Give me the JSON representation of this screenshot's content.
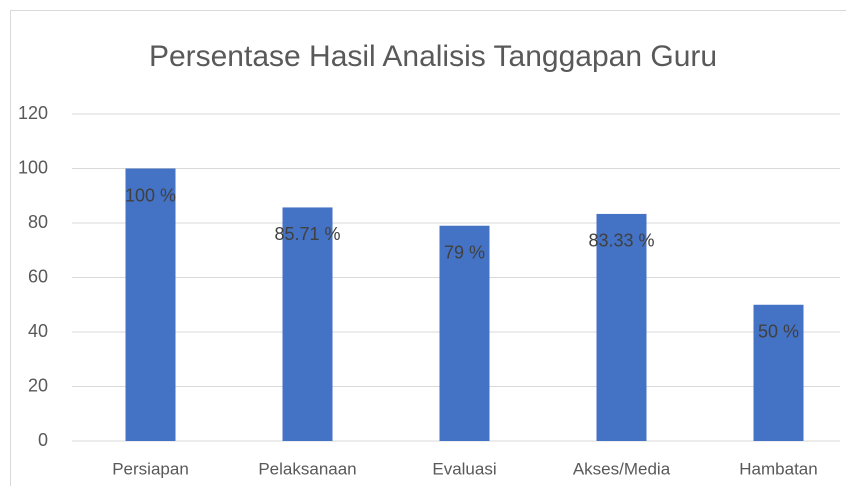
{
  "chart_data": {
    "type": "bar",
    "title": "Persentase Hasil Analisis Tanggapan Guru",
    "categories": [
      "Persiapan",
      "Pelaksanaan",
      "Evaluasi",
      "Akses/Media",
      "Hambatan"
    ],
    "values": [
      100,
      85.71,
      79,
      83.33,
      50
    ],
    "value_labels": [
      "100 %",
      "85.71 %",
      "79 %",
      "83.33 %",
      "50 %"
    ],
    "color": "#4472c4",
    "ylim": [
      0,
      120
    ],
    "yticks": [
      0,
      20,
      40,
      60,
      80,
      100,
      120
    ],
    "grid": true
  }
}
